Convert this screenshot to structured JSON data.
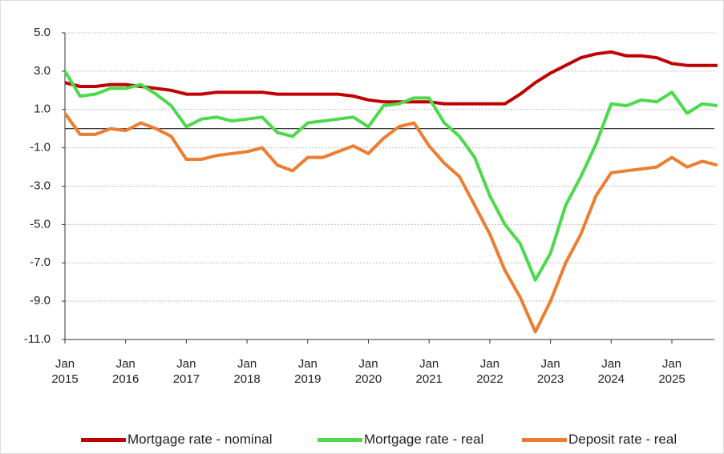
{
  "chart_data": {
    "type": "line",
    "x": [
      "2015-01",
      "2015-04",
      "2015-07",
      "2015-10",
      "2016-01",
      "2016-04",
      "2016-07",
      "2016-10",
      "2017-01",
      "2017-04",
      "2017-07",
      "2017-10",
      "2018-01",
      "2018-04",
      "2018-07",
      "2018-10",
      "2019-01",
      "2019-04",
      "2019-07",
      "2019-10",
      "2020-01",
      "2020-04",
      "2020-07",
      "2020-10",
      "2021-01",
      "2021-04",
      "2021-07",
      "2021-10",
      "2022-01",
      "2022-04",
      "2022-07",
      "2022-10",
      "2023-01",
      "2023-04",
      "2023-07",
      "2023-10",
      "2024-01",
      "2024-04",
      "2024-07",
      "2024-10",
      "2025-01",
      "2025-04",
      "2025-07",
      "2025-10"
    ],
    "series": [
      {
        "name": "Mortgage rate - nominal",
        "color": "#c00000",
        "values": [
          2.4,
          2.2,
          2.2,
          2.3,
          2.3,
          2.2,
          2.1,
          2.0,
          1.8,
          1.8,
          1.9,
          1.9,
          1.9,
          1.9,
          1.8,
          1.8,
          1.8,
          1.8,
          1.8,
          1.7,
          1.5,
          1.4,
          1.4,
          1.4,
          1.4,
          1.3,
          1.3,
          1.3,
          1.3,
          1.3,
          1.8,
          2.4,
          2.9,
          3.3,
          3.7,
          3.9,
          4.0,
          3.8,
          3.8,
          3.7,
          3.4,
          3.3,
          3.3,
          3.3
        ]
      },
      {
        "name": "Mortgage rate - real",
        "color": "#4cd94c",
        "values": [
          3.0,
          1.7,
          1.8,
          2.1,
          2.1,
          2.3,
          1.8,
          1.2,
          0.1,
          0.5,
          0.6,
          0.4,
          0.5,
          0.6,
          -0.2,
          -0.4,
          0.3,
          0.4,
          0.5,
          0.6,
          0.1,
          1.2,
          1.3,
          1.6,
          1.6,
          0.3,
          -0.4,
          -1.5,
          -3.5,
          -5.0,
          -6.0,
          -7.9,
          -6.5,
          -4.0,
          -2.5,
          -0.8,
          1.3,
          1.2,
          1.5,
          1.4,
          1.9,
          0.8,
          1.3,
          1.2
        ]
      },
      {
        "name": "Deposit rate - real",
        "color": "#ed7d31",
        "values": [
          0.8,
          -0.3,
          -0.3,
          0.0,
          -0.1,
          0.3,
          0.0,
          -0.4,
          -1.6,
          -1.6,
          -1.4,
          -1.3,
          -1.2,
          -1.0,
          -1.9,
          -2.2,
          -1.5,
          -1.5,
          -1.2,
          -0.9,
          -1.3,
          -0.5,
          0.1,
          0.3,
          -0.9,
          -1.8,
          -2.5,
          -4.0,
          -5.5,
          -7.4,
          -8.8,
          -10.6,
          -9.0,
          -7.0,
          -5.5,
          -3.5,
          -2.3,
          -2.2,
          -2.1,
          -2.0,
          -1.5,
          -2.0,
          -1.7,
          -1.9
        ]
      }
    ],
    "xticks": [
      {
        "value": "2015-01",
        "label": "Jan 2015"
      },
      {
        "value": "2016-01",
        "label": "Jan 2016"
      },
      {
        "value": "2017-01",
        "label": "Jan 2017"
      },
      {
        "value": "2018-01",
        "label": "Jan 2018"
      },
      {
        "value": "2019-01",
        "label": "Jan 2019"
      },
      {
        "value": "2020-01",
        "label": "Jan 2020"
      },
      {
        "value": "2021-01",
        "label": "Jan 2021"
      },
      {
        "value": "2022-01",
        "label": "Jan 2022"
      },
      {
        "value": "2023-01",
        "label": "Jan 2023"
      },
      {
        "value": "2024-01",
        "label": "Jan 2024"
      },
      {
        "value": "2025-01",
        "label": "Jan 2025"
      }
    ],
    "ylim": [
      -11,
      5
    ],
    "yticks": [
      {
        "value": 5,
        "label": "5.0"
      },
      {
        "value": 3,
        "label": "3.0"
      },
      {
        "value": 1,
        "label": "1.0"
      },
      {
        "value": -1,
        "label": "-1.0"
      },
      {
        "value": -3,
        "label": "-3.0"
      },
      {
        "value": -5,
        "label": "-5.0"
      },
      {
        "value": -7,
        "label": "-7.0"
      },
      {
        "value": -9,
        "label": "-9.0"
      },
      {
        "value": -11,
        "label": "-11.0"
      }
    ],
    "grid": true,
    "legend": "bottom"
  }
}
